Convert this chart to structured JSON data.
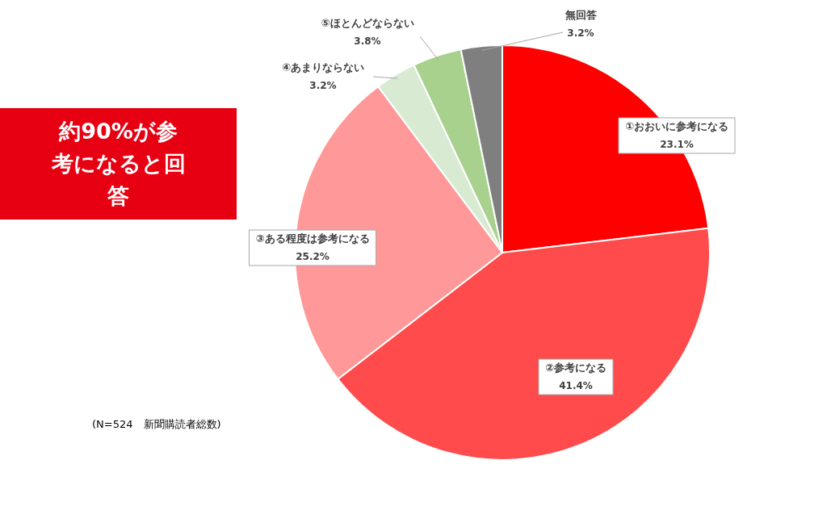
{
  "chart_data": {
    "type": "pie",
    "categories": [
      "①おおいに参考になる",
      "②参考になる",
      "③ある程度は参考になる",
      "④あまりならない",
      "⑤ほとんどならない",
      "無回答"
    ],
    "values": [
      23.1,
      41.4,
      25.2,
      3.2,
      3.8,
      3.2
    ],
    "colors": [
      "#ff0000",
      "#ff4b4b",
      "#ff9999",
      "#d9ead3",
      "#a9d18e",
      "#7f7f7f"
    ],
    "value_labels": [
      "23.1%",
      "41.4%",
      "25.2%",
      "3.2%",
      "3.8%",
      "3.2%"
    ],
    "legend": false,
    "annotations": [
      "約90%が参考になると回答",
      "(N=524　新聞購読者総数)"
    ]
  }
}
